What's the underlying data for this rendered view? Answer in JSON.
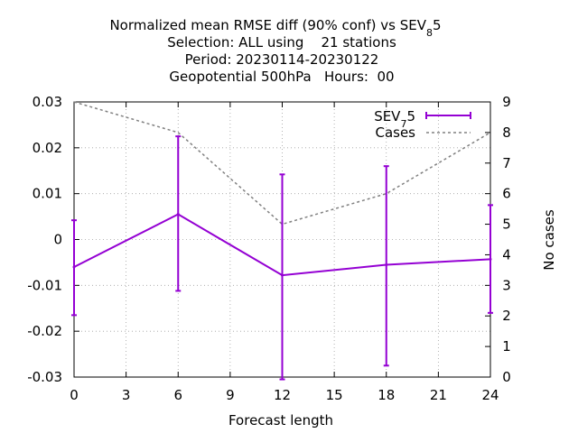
{
  "chart_data": {
    "type": "line",
    "title_lines": [
      "Normalized mean RMSE diff (90% conf) vs SEV",
      "Selection: ALL using    21 stations",
      "Period: 20230114-20230122",
      "Geopotential 500hPa   Hours:  00"
    ],
    "title_sev_base": "SEV",
    "title_sev_sub": "8",
    "title_sev_tail": "5",
    "xlabel": "Forecast length",
    "ylabel_right": "No cases",
    "xlim": [
      0,
      24
    ],
    "ylim_left": [
      -0.03,
      0.03
    ],
    "ylim_right": [
      0,
      9
    ],
    "x_ticks": [
      0,
      3,
      6,
      9,
      12,
      15,
      18,
      21,
      24
    ],
    "y_ticks_left": [
      -0.03,
      -0.02,
      -0.01,
      0,
      0.01,
      0.02,
      0.03
    ],
    "y_tick_labels_left": [
      "-0.03",
      "-0.02",
      "-0.01",
      "0",
      "0.01",
      "0.02",
      "0.03"
    ],
    "y_ticks_right": [
      0,
      1,
      2,
      3,
      4,
      5,
      6,
      7,
      8,
      9
    ],
    "grid": true,
    "legend_position": "top-right",
    "series": [
      {
        "name_base": "SEV",
        "name_sub": "7",
        "name_tail": "5",
        "axis": "left",
        "color": "#9400d3",
        "style": "errorbars",
        "x": [
          0,
          6,
          12,
          18,
          24
        ],
        "y": [
          -0.006,
          0.0055,
          -0.0078,
          -0.0055,
          -0.0043
        ],
        "y_low": [
          -0.0165,
          -0.0112,
          -0.0305,
          -0.0275,
          -0.016
        ],
        "y_high": [
          0.0042,
          0.0225,
          0.0142,
          0.016,
          0.0075
        ]
      },
      {
        "name": "Cases",
        "axis": "right",
        "color": "#808080",
        "style": "dashed",
        "x": [
          0,
          6,
          12,
          18,
          24
        ],
        "y": [
          9,
          8,
          5,
          6,
          8
        ]
      }
    ]
  }
}
